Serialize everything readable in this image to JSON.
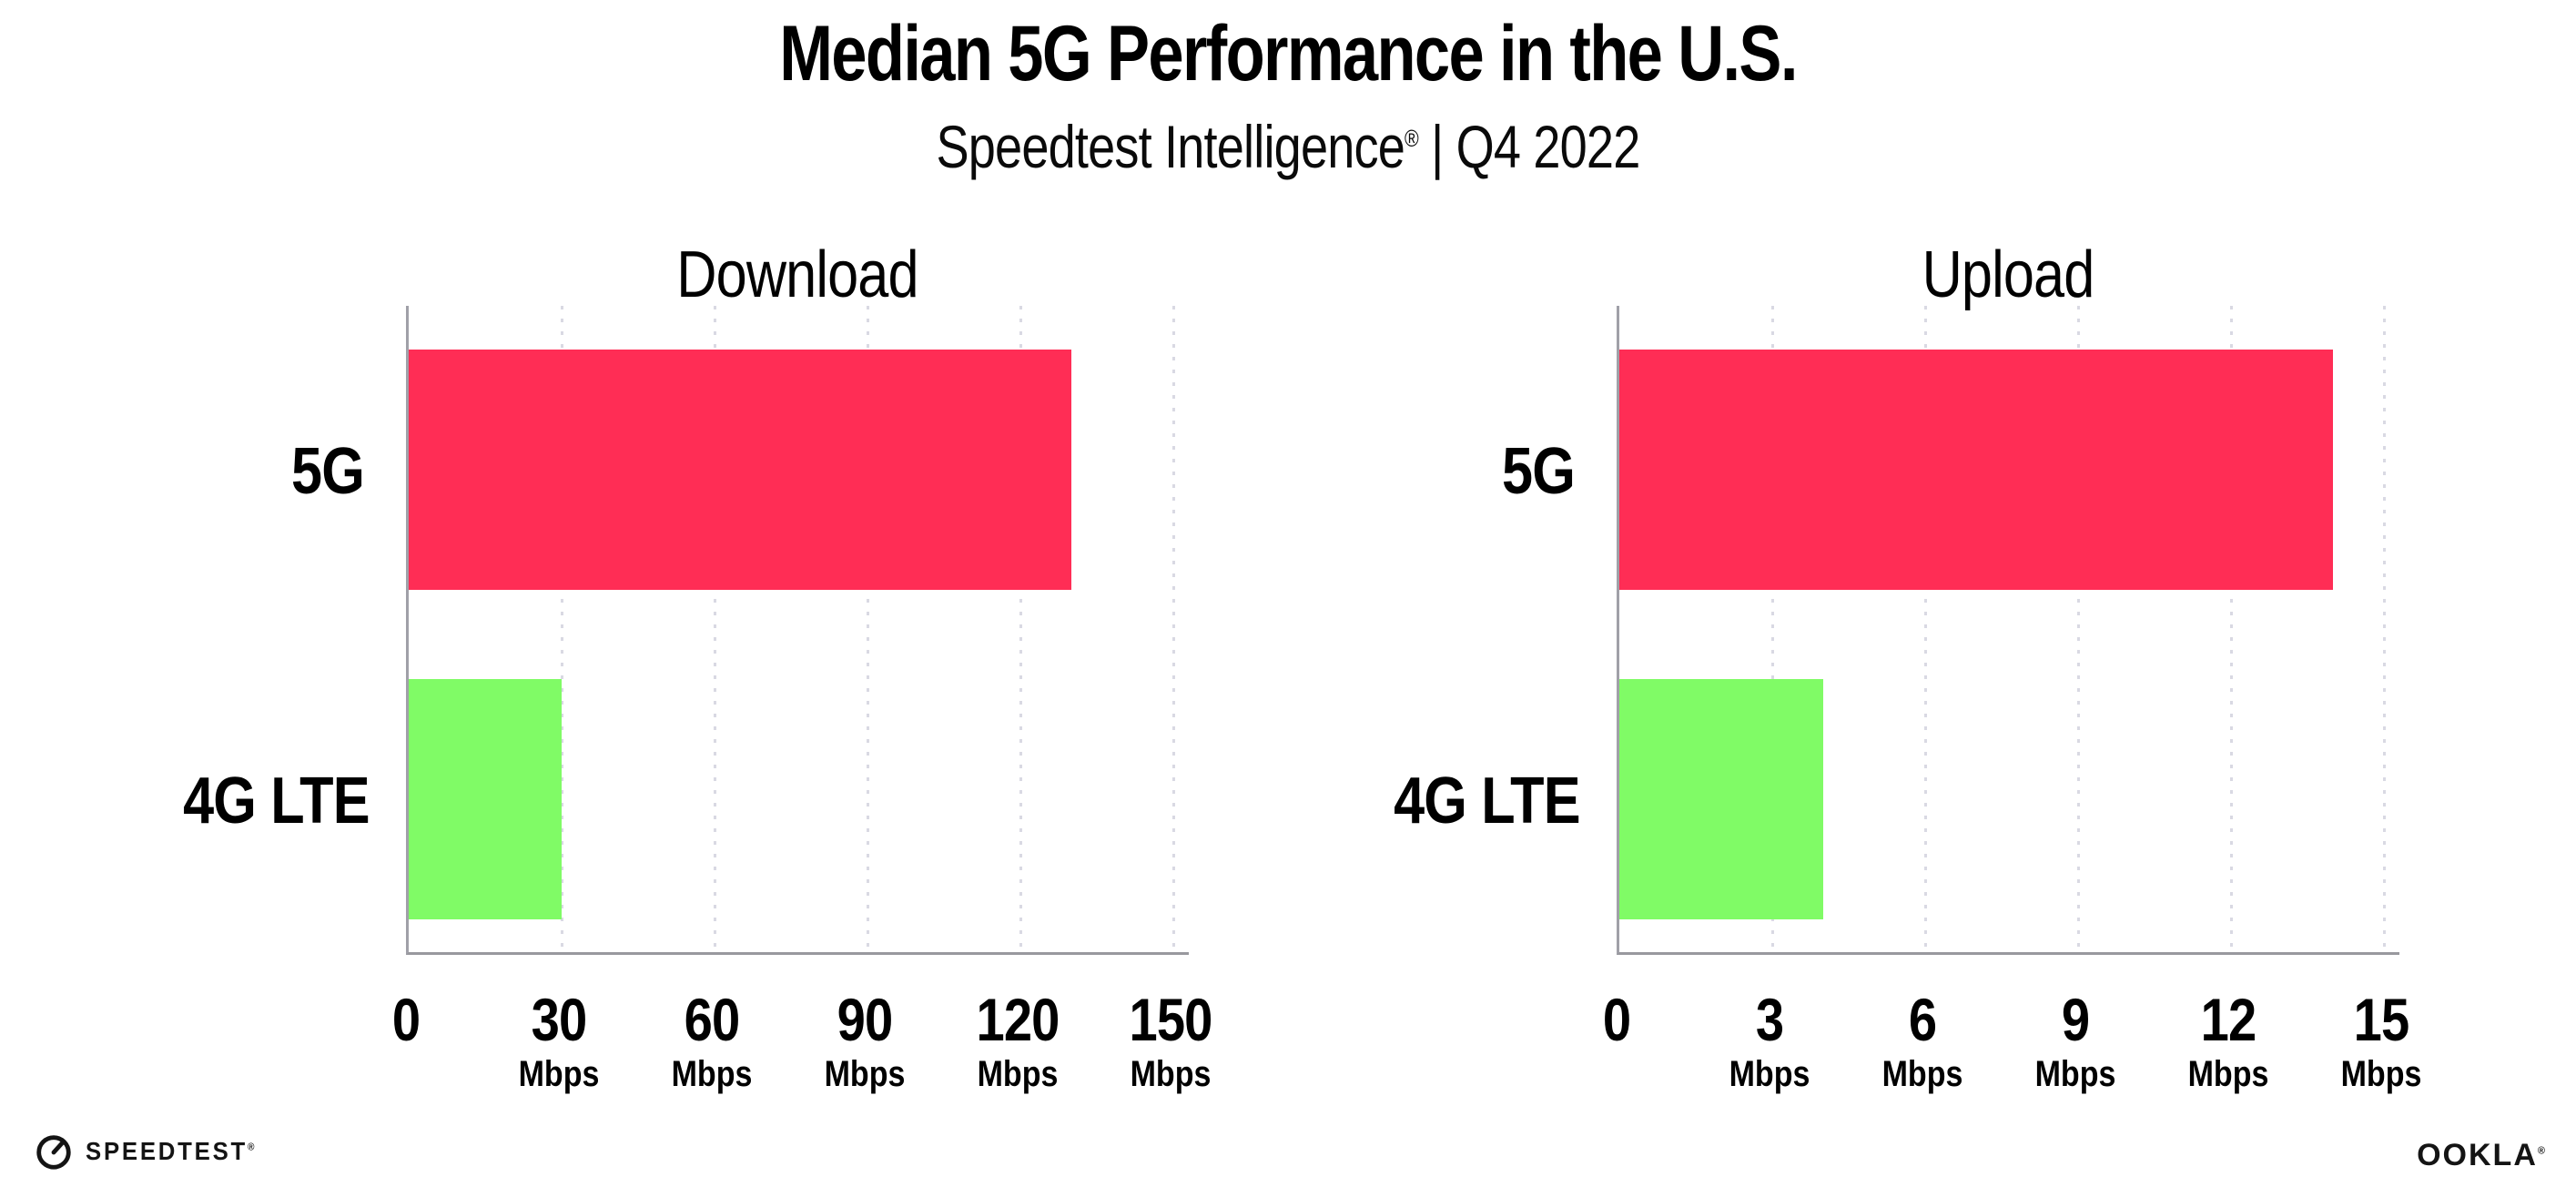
{
  "header": {
    "title": "Median 5G Performance in the U.S.",
    "subtitle_brand": "Speedtest Intelligence",
    "subtitle_mark": "®",
    "subtitle_rest": " | Q4 2022"
  },
  "chart_data": [
    {
      "type": "bar",
      "orientation": "horizontal",
      "title": "Download",
      "categories": [
        "5G",
        "4G LTE"
      ],
      "values": [
        130,
        30
      ],
      "unit": "Mbps",
      "xlabel": "",
      "ylabel": "",
      "xlim": [
        0,
        150
      ],
      "xticks": [
        0,
        30,
        60,
        90,
        120,
        150
      ],
      "grid": "vertical-dotted",
      "legend": "none",
      "bar_colors": [
        "#FF2D55",
        "#80FB66"
      ]
    },
    {
      "type": "bar",
      "orientation": "horizontal",
      "title": "Upload",
      "categories": [
        "5G",
        "4G LTE"
      ],
      "values": [
        14,
        4
      ],
      "unit": "Mbps",
      "xlabel": "",
      "ylabel": "",
      "xlim": [
        0,
        15
      ],
      "xticks": [
        0,
        3,
        6,
        9,
        12,
        15
      ],
      "grid": "vertical-dotted",
      "legend": "none",
      "bar_colors": [
        "#FF2D55",
        "#80FB66"
      ]
    }
  ],
  "footer": {
    "speedtest_label": "SPEEDTEST",
    "speedtest_mark": "®",
    "ookla_label": "OOKLA",
    "ookla_mark": "®"
  },
  "colors": {
    "bar_5g": "#FF2D55",
    "bar_4g_lte": "#80FB66",
    "axis": "#98989e",
    "grid_dots": "#d9d9e3",
    "text": "#000000",
    "background": "#ffffff"
  }
}
